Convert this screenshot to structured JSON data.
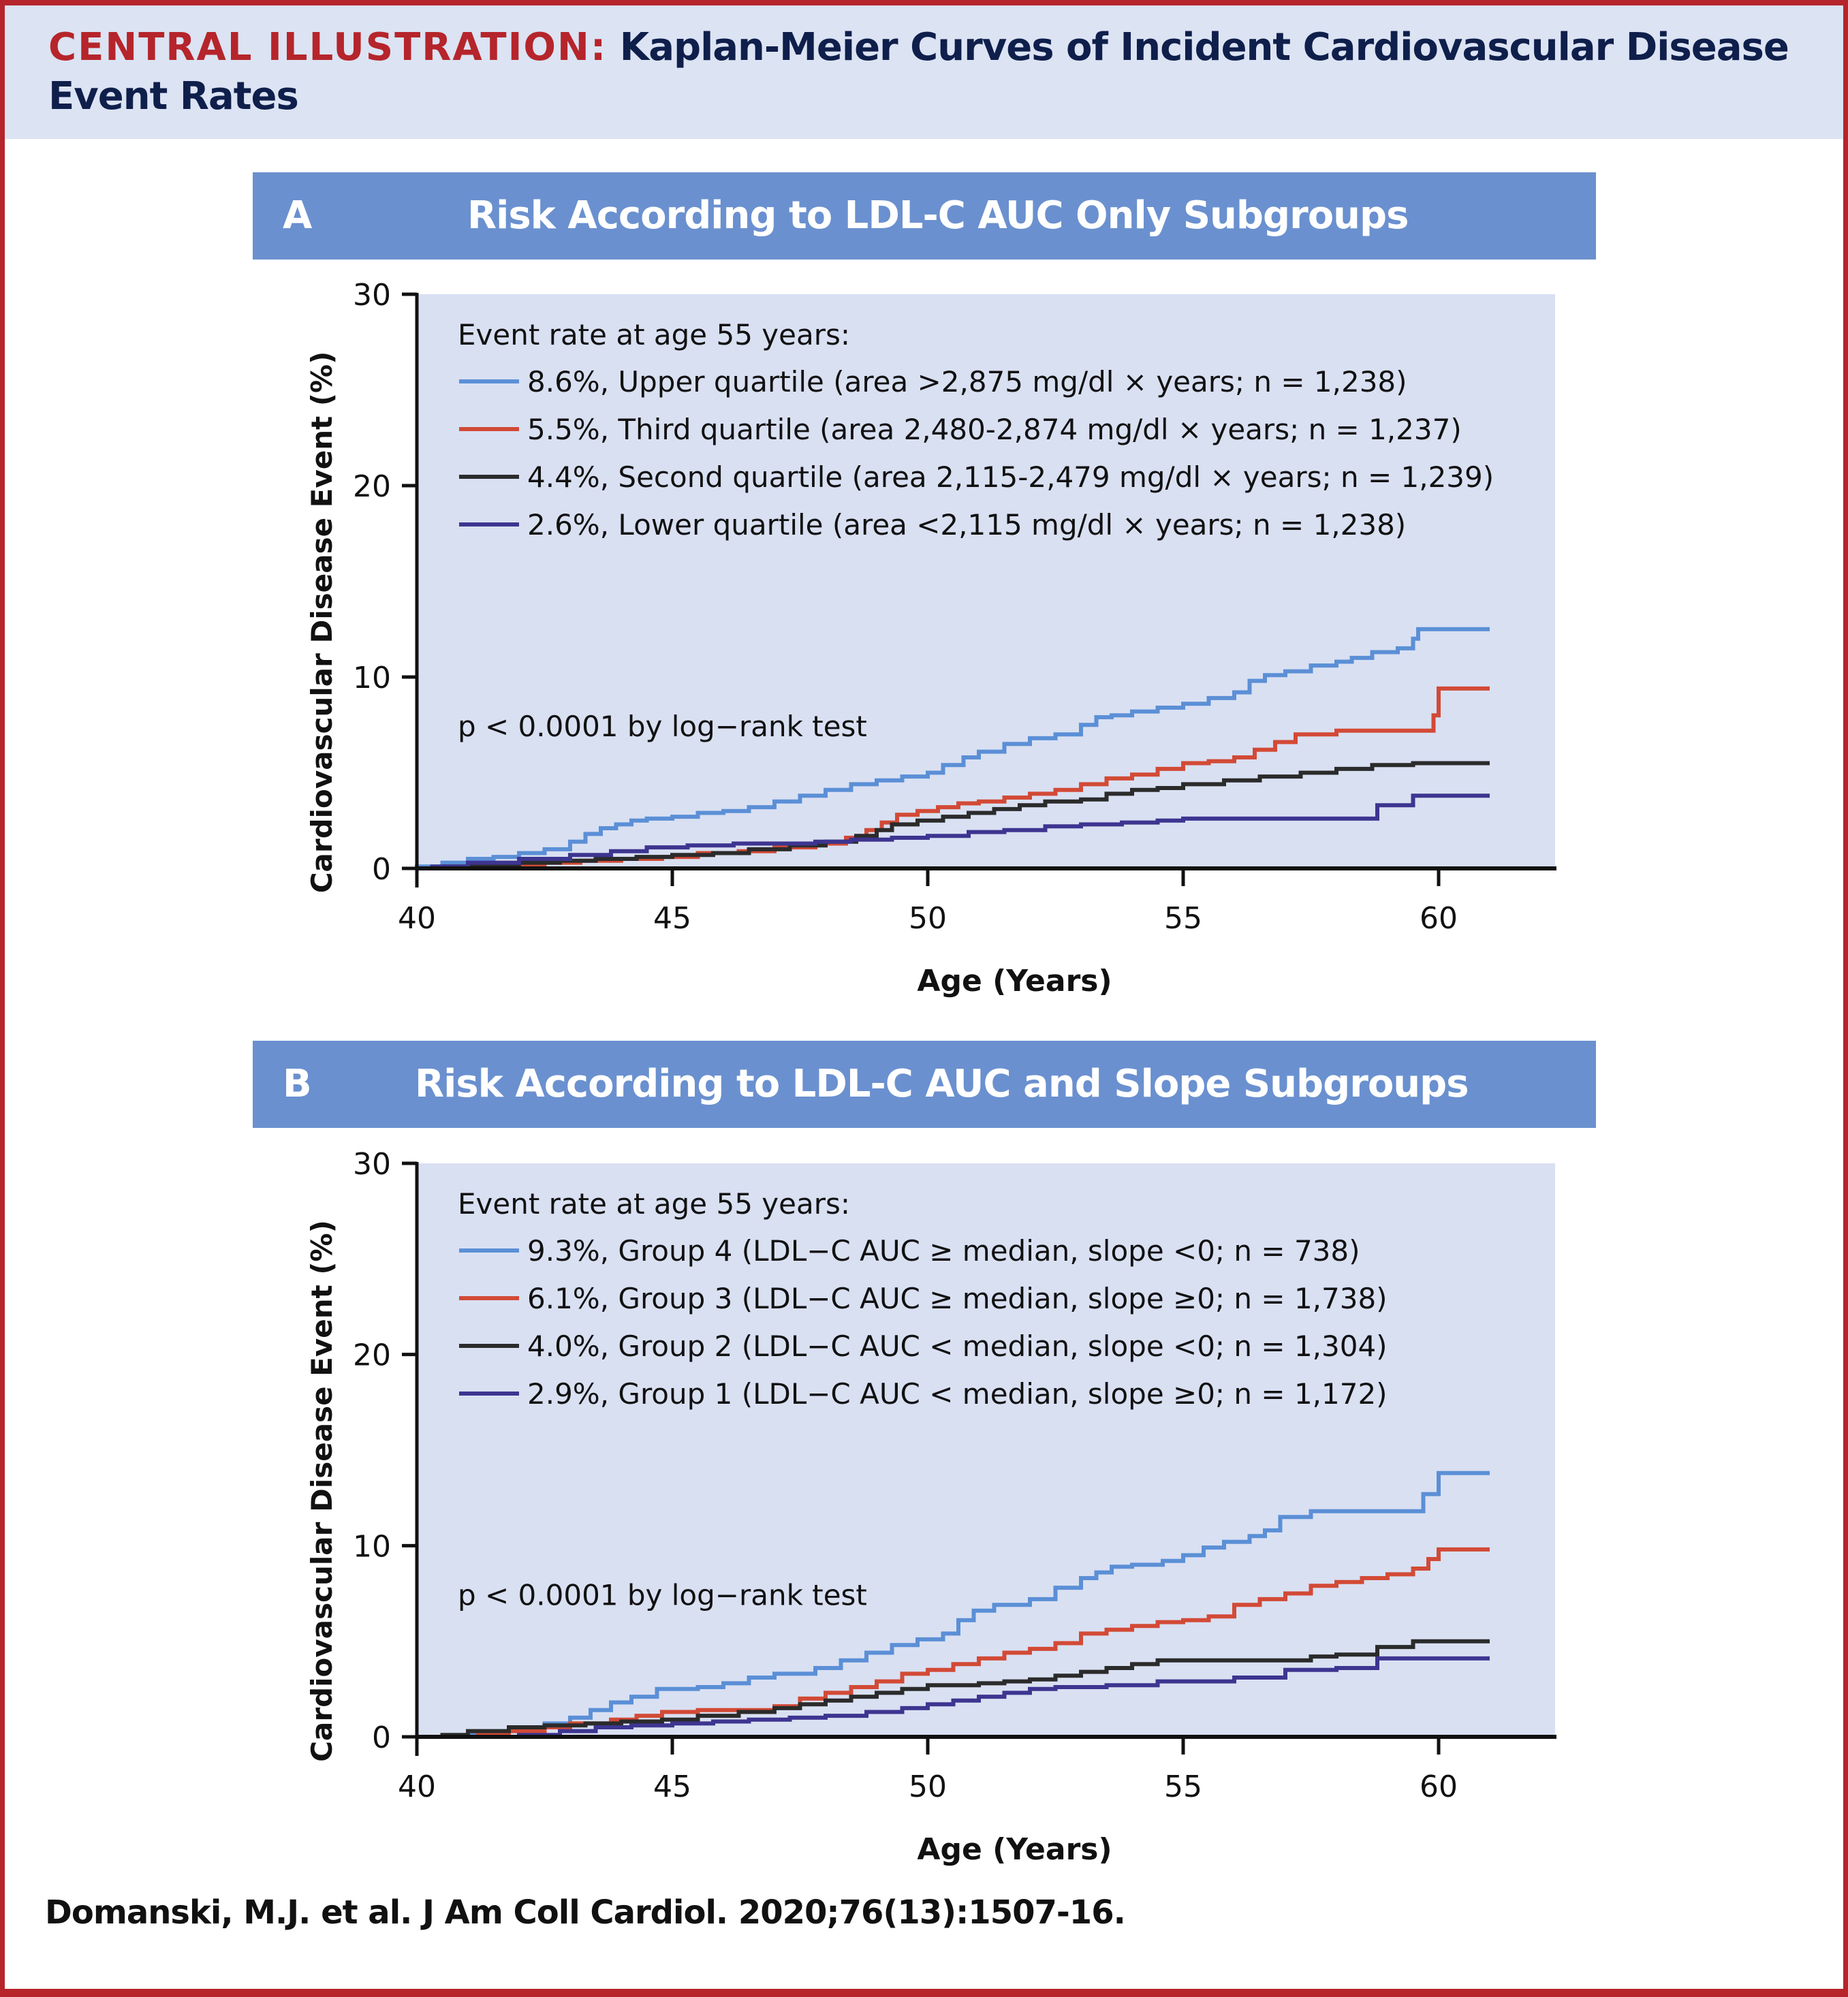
{
  "header": {
    "lead": "CENTRAL ILLUSTRATION:",
    "title": "Kaplan-Meier Curves of Incident Cardiovascular Disease Event Rates"
  },
  "citation": "Domanski, M.J. et al. J Am Coll Cardiol. 2020;76(13):1507-16.",
  "colors": {
    "frame": "#b5252b",
    "header_bg": "#dce3f3",
    "panel_bar": "#6a90cf",
    "plot_bg": "#d9e0f2",
    "series_blue": "#5b8fd6",
    "series_red": "#d24a36",
    "series_black": "#2b2b2b",
    "series_purple": "#3d3590"
  },
  "chart_data": [
    {
      "type": "line",
      "step": true,
      "panel_letter": "A",
      "title": "Risk According to LDL-C AUC Only Subgroups",
      "xlabel": "Age (Years)",
      "ylabel": "Cardiovascular Disease Event (%)",
      "xlim": [
        40,
        62.2
      ],
      "ylim": [
        0,
        30
      ],
      "xticks": [
        40,
        45,
        50,
        55,
        60
      ],
      "yticks": [
        0,
        10,
        20,
        30
      ],
      "grid": false,
      "legend_title": "Event rate at age 55 years:",
      "legend_position": "top-left",
      "annotation": "p < 0.0001 by log−rank test",
      "series": [
        {
          "name": "8.6%, Upper quartile (area >2,875 mg/dl × years; n = 1,238)",
          "color": "#5b8fd6",
          "x": [
            40.0,
            40.5,
            41.0,
            41.5,
            42.0,
            42.5,
            43.0,
            43.3,
            43.6,
            43.9,
            44.2,
            44.5,
            45.0,
            45.5,
            46.0,
            46.5,
            47.0,
            47.5,
            48.0,
            48.5,
            49.0,
            49.5,
            50.0,
            50.3,
            50.7,
            51.0,
            51.5,
            52.0,
            52.5,
            53.0,
            53.3,
            53.6,
            54.0,
            54.5,
            55.0,
            55.5,
            56.0,
            56.3,
            56.6,
            57.0,
            57.5,
            58.0,
            58.3,
            58.7,
            59.2,
            59.5,
            59.6,
            61.0
          ],
          "y": [
            0.1,
            0.3,
            0.5,
            0.6,
            0.8,
            1.0,
            1.4,
            1.8,
            2.1,
            2.3,
            2.5,
            2.6,
            2.7,
            2.9,
            3.0,
            3.2,
            3.5,
            3.8,
            4.1,
            4.4,
            4.6,
            4.8,
            5.0,
            5.4,
            5.8,
            6.1,
            6.5,
            6.8,
            7.0,
            7.5,
            7.9,
            8.0,
            8.2,
            8.4,
            8.6,
            8.9,
            9.2,
            9.8,
            10.1,
            10.3,
            10.6,
            10.8,
            11.0,
            11.3,
            11.5,
            12.0,
            12.5,
            12.5
          ]
        },
        {
          "name": "5.5%, Third quartile (area 2,480-2,874 mg/dl × years; n = 1,237)",
          "color": "#d24a36",
          "x": [
            41.2,
            41.8,
            42.5,
            43.2,
            44.0,
            44.8,
            45.5,
            46.3,
            47.0,
            47.8,
            48.4,
            48.8,
            49.1,
            49.4,
            49.8,
            50.2,
            50.6,
            51.0,
            51.5,
            52.0,
            52.5,
            53.0,
            53.5,
            54.0,
            54.5,
            55.0,
            55.5,
            56.0,
            56.4,
            56.8,
            57.2,
            58.0,
            59.0,
            59.8,
            59.9,
            60.0,
            61.0
          ],
          "y": [
            0.1,
            0.2,
            0.3,
            0.4,
            0.5,
            0.6,
            0.8,
            0.9,
            1.1,
            1.3,
            1.6,
            2.0,
            2.4,
            2.8,
            3.0,
            3.2,
            3.4,
            3.5,
            3.7,
            3.9,
            4.1,
            4.4,
            4.7,
            4.9,
            5.2,
            5.5,
            5.6,
            5.8,
            6.2,
            6.6,
            7.0,
            7.2,
            7.2,
            7.2,
            8.0,
            9.4,
            9.4
          ]
        },
        {
          "name": "4.4%, Second quartile (area 2,115-2,479 mg/dl × years; n = 1,239)",
          "color": "#2b2b2b",
          "x": [
            40.5,
            41.3,
            42.0,
            42.8,
            43.5,
            44.3,
            45.0,
            45.8,
            46.5,
            47.3,
            48.0,
            48.6,
            49.0,
            49.3,
            49.8,
            50.3,
            50.8,
            51.3,
            51.8,
            52.3,
            53.0,
            53.5,
            54.0,
            54.5,
            55.0,
            55.8,
            56.5,
            57.3,
            58.0,
            58.7,
            59.5,
            61.0
          ],
          "y": [
            0.1,
            0.2,
            0.3,
            0.4,
            0.5,
            0.6,
            0.7,
            0.8,
            1.0,
            1.2,
            1.4,
            1.7,
            2.0,
            2.3,
            2.5,
            2.7,
            2.9,
            3.1,
            3.3,
            3.5,
            3.6,
            3.9,
            4.1,
            4.2,
            4.4,
            4.6,
            4.8,
            5.0,
            5.2,
            5.4,
            5.5,
            5.5
          ]
        },
        {
          "name": "2.6%, Lower quartile (area <2,115 mg/dl × years; n = 1,238)",
          "color": "#3d3590",
          "x": [
            40.3,
            41.0,
            42.0,
            43.0,
            43.8,
            44.5,
            45.3,
            46.2,
            47.0,
            47.8,
            48.5,
            49.3,
            50.0,
            50.8,
            51.5,
            52.3,
            53.0,
            53.8,
            54.5,
            55.0,
            56.0,
            57.0,
            58.0,
            58.8,
            59.5,
            61.0
          ],
          "y": [
            0.1,
            0.3,
            0.5,
            0.7,
            0.9,
            1.1,
            1.2,
            1.3,
            1.3,
            1.4,
            1.5,
            1.6,
            1.7,
            1.9,
            2.0,
            2.2,
            2.3,
            2.4,
            2.5,
            2.6,
            2.6,
            2.6,
            2.6,
            3.3,
            3.8,
            3.8
          ]
        }
      ]
    },
    {
      "type": "line",
      "step": true,
      "panel_letter": "B",
      "title": "Risk According to LDL-C AUC and Slope Subgroups",
      "xlabel": "Age (Years)",
      "ylabel": "Cardiovascular Disease Event (%)",
      "xlim": [
        40,
        62.2
      ],
      "ylim": [
        0,
        30
      ],
      "xticks": [
        40,
        45,
        50,
        55,
        60
      ],
      "yticks": [
        0,
        10,
        20,
        30
      ],
      "grid": false,
      "legend_title": "Event rate at age 55 years:",
      "legend_position": "top-left",
      "annotation": "p < 0.0001 by log−rank test",
      "series": [
        {
          "name": "9.3%, Group 4 (LDL−C AUC ≥ median, slope <0; n = 738)",
          "color": "#5b8fd6",
          "x": [
            40.0,
            41.0,
            41.8,
            42.5,
            43.0,
            43.4,
            43.8,
            44.2,
            44.7,
            45.5,
            46.0,
            46.5,
            47.0,
            47.8,
            48.3,
            48.8,
            49.3,
            49.8,
            50.3,
            50.6,
            50.9,
            51.3,
            52.0,
            52.5,
            53.0,
            53.3,
            53.6,
            54.0,
            54.6,
            55.0,
            55.4,
            55.8,
            56.3,
            56.6,
            56.9,
            57.5,
            59.3,
            59.7,
            60.0,
            61.0
          ],
          "y": [
            0.0,
            0.2,
            0.4,
            0.7,
            1.0,
            1.4,
            1.8,
            2.1,
            2.5,
            2.6,
            2.8,
            3.1,
            3.3,
            3.6,
            4.0,
            4.4,
            4.8,
            5.1,
            5.4,
            6.1,
            6.6,
            6.9,
            7.2,
            7.8,
            8.3,
            8.6,
            8.9,
            9.0,
            9.2,
            9.5,
            9.9,
            10.2,
            10.5,
            10.8,
            11.5,
            11.8,
            11.8,
            12.7,
            13.8,
            13.8
          ]
        },
        {
          "name": "6.1%, Group 3 (LDL−C AUC ≥ median, slope ≥0; n = 1,738)",
          "color": "#d24a36",
          "x": [
            41.2,
            41.8,
            42.5,
            43.0,
            43.8,
            44.3,
            44.8,
            45.5,
            46.5,
            47.0,
            47.5,
            48.0,
            48.5,
            49.0,
            49.5,
            50.0,
            50.5,
            51.0,
            51.5,
            52.0,
            52.5,
            53.0,
            53.5,
            54.0,
            54.5,
            55.0,
            55.5,
            56.0,
            56.5,
            57.0,
            57.5,
            58.0,
            58.5,
            59.0,
            59.5,
            59.8,
            60.0,
            61.0
          ],
          "y": [
            0.1,
            0.3,
            0.5,
            0.7,
            0.9,
            1.1,
            1.3,
            1.4,
            1.4,
            1.6,
            2.0,
            2.3,
            2.6,
            2.9,
            3.3,
            3.5,
            3.8,
            4.1,
            4.4,
            4.6,
            4.9,
            5.4,
            5.6,
            5.8,
            6.0,
            6.1,
            6.3,
            6.9,
            7.2,
            7.5,
            7.9,
            8.1,
            8.3,
            8.5,
            8.8,
            9.3,
            9.8,
            9.8
          ]
        },
        {
          "name": "4.0%, Group 2 (LDL−C AUC < median, slope <0; n = 1,304)",
          "color": "#2b2b2b",
          "x": [
            40.5,
            41.0,
            41.8,
            42.5,
            43.3,
            44.0,
            44.8,
            45.5,
            46.3,
            47.0,
            47.5,
            48.0,
            48.5,
            49.0,
            49.5,
            50.0,
            50.5,
            51.0,
            51.5,
            52.0,
            52.5,
            53.0,
            53.5,
            54.0,
            54.5,
            55.0,
            56.0,
            57.0,
            57.5,
            58.0,
            58.8,
            59.5,
            61.0
          ],
          "y": [
            0.1,
            0.3,
            0.5,
            0.6,
            0.7,
            0.8,
            0.9,
            1.1,
            1.3,
            1.5,
            1.7,
            1.9,
            2.1,
            2.3,
            2.5,
            2.7,
            2.7,
            2.8,
            2.9,
            3.0,
            3.2,
            3.4,
            3.6,
            3.8,
            4.0,
            4.0,
            4.0,
            4.0,
            4.2,
            4.3,
            4.7,
            5.0,
            5.0
          ]
        },
        {
          "name": "2.9%, Group 1 (LDL−C AUC < median, slope ≥0; n = 1,172)",
          "color": "#3d3590",
          "x": [
            42.0,
            42.8,
            43.5,
            44.2,
            45.0,
            45.8,
            46.5,
            47.3,
            48.0,
            48.8,
            49.5,
            50.0,
            50.5,
            51.0,
            51.5,
            52.0,
            52.5,
            53.5,
            54.5,
            55.0,
            56.0,
            57.0,
            58.0,
            58.8,
            61.0
          ],
          "y": [
            0.1,
            0.3,
            0.5,
            0.6,
            0.7,
            0.8,
            0.9,
            1.0,
            1.1,
            1.3,
            1.5,
            1.7,
            1.9,
            2.1,
            2.3,
            2.5,
            2.6,
            2.7,
            2.9,
            2.9,
            3.1,
            3.5,
            3.6,
            4.1,
            4.1
          ]
        }
      ]
    }
  ]
}
